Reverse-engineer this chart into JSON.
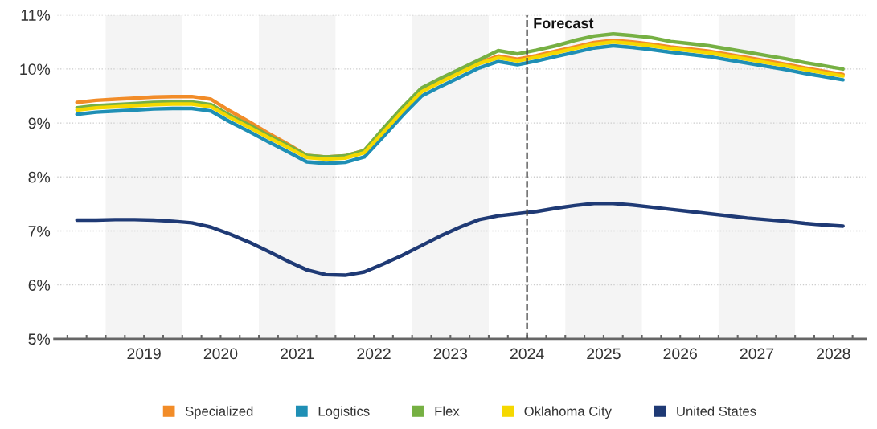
{
  "chart_data": {
    "type": "line",
    "x": [
      2018.625,
      2018.875,
      2019.125,
      2019.375,
      2019.625,
      2019.875,
      2020.125,
      2020.375,
      2020.625,
      2020.875,
      2021.125,
      2021.375,
      2021.625,
      2021.875,
      2022.125,
      2022.375,
      2022.625,
      2022.875,
      2023.125,
      2023.375,
      2023.625,
      2023.875,
      2024.125,
      2024.375,
      2024.625,
      2024.875,
      2025.125,
      2025.375,
      2025.625,
      2025.875,
      2026.125,
      2026.375,
      2026.625,
      2026.875,
      2027.125,
      2027.375,
      2027.625,
      2027.875,
      2028.125,
      2028.375,
      2028.625
    ],
    "series": [
      {
        "name": "Specialized",
        "color": "#f28c28",
        "values": [
          9.38,
          9.42,
          9.44,
          9.46,
          9.48,
          9.49,
          9.49,
          9.44,
          9.22,
          9.02,
          8.81,
          8.61,
          8.4,
          8.37,
          8.39,
          8.49,
          8.85,
          9.24,
          9.6,
          9.78,
          9.95,
          10.12,
          10.24,
          10.18,
          10.25,
          10.33,
          10.41,
          10.49,
          10.53,
          10.5,
          10.46,
          10.41,
          10.37,
          10.33,
          10.27,
          10.21,
          10.15,
          10.09,
          10.02,
          9.96,
          9.9
        ]
      },
      {
        "name": "Logistics",
        "color": "#1f8fb5",
        "values": [
          9.16,
          9.2,
          9.22,
          9.24,
          9.26,
          9.27,
          9.27,
          9.22,
          9.02,
          8.84,
          8.65,
          8.47,
          8.28,
          8.25,
          8.27,
          8.37,
          8.75,
          9.14,
          9.5,
          9.68,
          9.85,
          10.02,
          10.14,
          10.08,
          10.15,
          10.23,
          10.31,
          10.39,
          10.43,
          10.4,
          10.36,
          10.31,
          10.27,
          10.23,
          10.17,
          10.11,
          10.05,
          9.99,
          9.92,
          9.86,
          9.8
        ]
      },
      {
        "name": "Flex",
        "color": "#76b043",
        "values": [
          9.28,
          9.32,
          9.34,
          9.36,
          9.38,
          9.39,
          9.39,
          9.34,
          9.14,
          8.96,
          8.77,
          8.59,
          8.4,
          8.37,
          8.39,
          8.49,
          8.9,
          9.29,
          9.65,
          9.83,
          10.0,
          10.17,
          10.34,
          10.28,
          10.35,
          10.43,
          10.53,
          10.61,
          10.65,
          10.62,
          10.58,
          10.51,
          10.47,
          10.43,
          10.37,
          10.31,
          10.25,
          10.19,
          10.12,
          10.06,
          10.0
        ]
      },
      {
        "name": "Oklahoma City",
        "color": "#f5d800",
        "values": [
          9.24,
          9.28,
          9.3,
          9.32,
          9.34,
          9.35,
          9.35,
          9.3,
          9.1,
          8.92,
          8.73,
          8.55,
          8.36,
          8.33,
          8.35,
          8.45,
          8.83,
          9.22,
          9.58,
          9.76,
          9.93,
          10.1,
          10.21,
          10.15,
          10.22,
          10.3,
          10.38,
          10.46,
          10.5,
          10.47,
          10.43,
          10.38,
          10.34,
          10.3,
          10.24,
          10.18,
          10.12,
          10.06,
          9.99,
          9.93,
          9.87
        ]
      },
      {
        "name": "United States",
        "color": "#1f3a75",
        "values": [
          7.2,
          7.2,
          7.21,
          7.21,
          7.2,
          7.18,
          7.15,
          7.07,
          6.94,
          6.79,
          6.62,
          6.44,
          6.28,
          6.19,
          6.18,
          6.24,
          6.39,
          6.55,
          6.73,
          6.91,
          7.07,
          7.21,
          7.28,
          7.32,
          7.36,
          7.42,
          7.47,
          7.51,
          7.51,
          7.48,
          7.44,
          7.4,
          7.36,
          7.32,
          7.28,
          7.24,
          7.21,
          7.18,
          7.14,
          7.11,
          7.09
        ]
      }
    ],
    "xlim": [
      2018.33,
      2028.92
    ],
    "xticks": [
      {
        "value": 2018.5,
        "label": null
      },
      {
        "value": 2018.75,
        "label": null
      },
      {
        "value": 2019,
        "label": null
      },
      {
        "value": 2019.25,
        "label": null
      },
      {
        "value": 2019.5,
        "label": "2019"
      },
      {
        "value": 2019.75,
        "label": null
      },
      {
        "value": 2020,
        "label": null
      },
      {
        "value": 2020.25,
        "label": null
      },
      {
        "value": 2020.5,
        "label": "2020"
      },
      {
        "value": 2020.75,
        "label": null
      },
      {
        "value": 2021,
        "label": null
      },
      {
        "value": 2021.25,
        "label": null
      },
      {
        "value": 2021.5,
        "label": "2021"
      },
      {
        "value": 2021.75,
        "label": null
      },
      {
        "value": 2022,
        "label": null
      },
      {
        "value": 2022.25,
        "label": null
      },
      {
        "value": 2022.5,
        "label": "2022"
      },
      {
        "value": 2022.75,
        "label": null
      },
      {
        "value": 2023,
        "label": null
      },
      {
        "value": 2023.25,
        "label": null
      },
      {
        "value": 2023.5,
        "label": "2023"
      },
      {
        "value": 2023.75,
        "label": null
      },
      {
        "value": 2024,
        "label": null
      },
      {
        "value": 2024.25,
        "label": null
      },
      {
        "value": 2024.5,
        "label": "2024"
      },
      {
        "value": 2024.75,
        "label": null
      },
      {
        "value": 2025,
        "label": null
      },
      {
        "value": 2025.25,
        "label": null
      },
      {
        "value": 2025.5,
        "label": "2025"
      },
      {
        "value": 2025.75,
        "label": null
      },
      {
        "value": 2026,
        "label": null
      },
      {
        "value": 2026.25,
        "label": null
      },
      {
        "value": 2026.5,
        "label": "2026"
      },
      {
        "value": 2026.75,
        "label": null
      },
      {
        "value": 2027,
        "label": null
      },
      {
        "value": 2027.25,
        "label": null
      },
      {
        "value": 2027.5,
        "label": "2027"
      },
      {
        "value": 2027.75,
        "label": null
      },
      {
        "value": 2028,
        "label": null
      },
      {
        "value": 2028.25,
        "label": null
      },
      {
        "value": 2028.5,
        "label": "2028"
      },
      {
        "value": 2028.75,
        "label": null
      }
    ],
    "ylim": [
      5,
      11
    ],
    "yticks": [
      {
        "value": 5,
        "label": "5%"
      },
      {
        "value": 6,
        "label": "6%"
      },
      {
        "value": 7,
        "label": "7%"
      },
      {
        "value": 8,
        "label": "8%"
      },
      {
        "value": 9,
        "label": "9%"
      },
      {
        "value": 10,
        "label": "10%"
      },
      {
        "value": 11,
        "label": "11%"
      }
    ],
    "grid": "y",
    "legend": "bottom",
    "marker": "none",
    "line_style": "solid",
    "ref_lines": [
      {
        "axis": "x",
        "value": 2024.5,
        "label": "Forecast",
        "color": "#444444",
        "line_style": "dashed"
      }
    ],
    "bands": [
      {
        "axis": "x",
        "from": 2019,
        "to": 2020,
        "label": null,
        "color": "#f4f4f4"
      },
      {
        "axis": "x",
        "from": 2021,
        "to": 2022,
        "label": null,
        "color": "#f4f4f4"
      },
      {
        "axis": "x",
        "from": 2023,
        "to": 2024,
        "label": null,
        "color": "#f4f4f4"
      },
      {
        "axis": "x",
        "from": 2025,
        "to": 2026,
        "label": null,
        "color": "#f4f4f4"
      },
      {
        "axis": "x",
        "from": 2027,
        "to": 2028,
        "label": null,
        "color": "#f4f4f4"
      }
    ]
  }
}
